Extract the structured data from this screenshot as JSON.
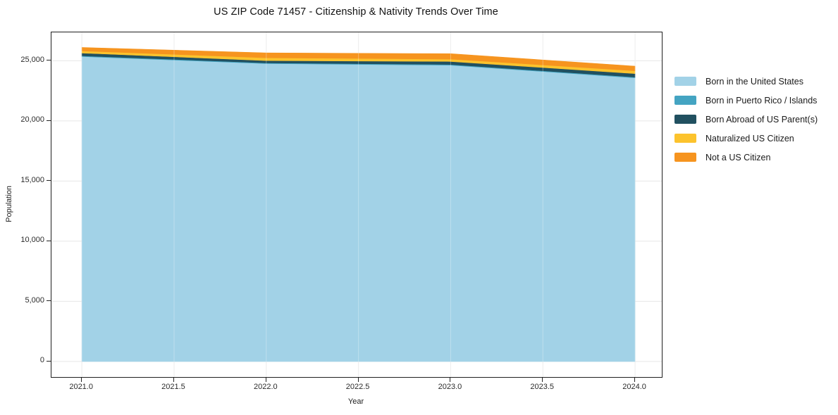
{
  "chart_data": {
    "type": "area",
    "stacked": true,
    "title": "US ZIP Code 71457 - Citizenship & Nativity Trends Over Time",
    "xlabel": "Year",
    "ylabel": "Population",
    "x": [
      2021,
      2022,
      2023,
      2024
    ],
    "series": [
      {
        "name": "Born in the United States",
        "color": "#a2d2e7",
        "values": [
          25350,
          24760,
          24630,
          23580
        ]
      },
      {
        "name": "Born in Puerto Rico / Islands",
        "color": "#44a4c2",
        "values": [
          60,
          60,
          60,
          60
        ]
      },
      {
        "name": "Born Abroad of US Parent(s)",
        "color": "#215060",
        "values": [
          230,
          190,
          250,
          290
        ]
      },
      {
        "name": "Naturalized US Citizen",
        "color": "#fcc32d",
        "values": [
          175,
          235,
          195,
          235
        ]
      },
      {
        "name": "Not a US Citizen",
        "color": "#f6941f",
        "values": [
          290,
          410,
          450,
          385
        ]
      }
    ],
    "x_ticks": {
      "values": [
        2021.0,
        2021.5,
        2022.0,
        2022.5,
        2023.0,
        2023.5,
        2024.0
      ],
      "labels": [
        "2021.0",
        "2021.5",
        "2022.0",
        "2022.5",
        "2023.0",
        "2023.5",
        "2024.0"
      ]
    },
    "y_ticks": {
      "values": [
        0,
        5000,
        10000,
        15000,
        20000,
        25000
      ],
      "labels": [
        "0",
        "5,000",
        "10,000",
        "15,000",
        "20,000",
        "25,000"
      ]
    },
    "xlim": [
      2020.835,
      2024.145
    ],
    "ylim": [
      -1290,
      27360
    ],
    "grid": true,
    "legend_position": "right",
    "colors": {
      "frame": "#1f1f1f",
      "grid": "#e7e7e7",
      "grid_overlay": "rgba(255,255,255,0.30)",
      "text": "#1a1a1a"
    }
  }
}
